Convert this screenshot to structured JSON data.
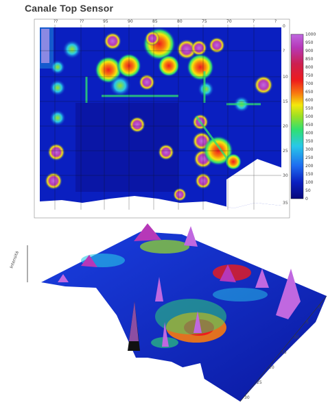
{
  "title": "Canale Top Sensor",
  "chart_data": [
    {
      "type": "heatmap",
      "title": "Canale Top Sensor",
      "colorbar": {
        "min": 0,
        "max": 1000,
        "ticks": [
          1000,
          950,
          900,
          850,
          800,
          750,
          700,
          650,
          600,
          550,
          500,
          450,
          400,
          350,
          300,
          250,
          200,
          150,
          100,
          50,
          0
        ],
        "colors": [
          "#08087a",
          "#0a1fc0",
          "#1e6cf0",
          "#28c8e8",
          "#30e070",
          "#9ae024",
          "#f4e80c",
          "#f87a10",
          "#ee1c1c",
          "#cc2050",
          "#b638b8",
          "#c068e0"
        ]
      },
      "x_ticks": [
        "??",
        "??",
        "95",
        "90",
        "85",
        "80",
        "75",
        "70",
        "?",
        "?"
      ],
      "y_ticks": [
        "0",
        "?",
        "10",
        "15",
        "20",
        "25",
        "30",
        "35"
      ],
      "background": "#0a1fc0",
      "hotspots": [
        {
          "x": 60,
          "y": 30,
          "value": 950
        },
        {
          "x": 130,
          "y": 40,
          "value": 800
        },
        {
          "x": 230,
          "y": 30,
          "value": 700
        },
        {
          "x": 250,
          "y": 80,
          "value": 750
        },
        {
          "x": 240,
          "y": 110,
          "value": 700
        },
        {
          "x": 300,
          "y": 90,
          "value": 780
        },
        {
          "x": 280,
          "y": 160,
          "value": 650
        },
        {
          "x": 260,
          "y": 200,
          "value": 750
        },
        {
          "x": 320,
          "y": 270,
          "value": 720
        }
      ]
    },
    {
      "type": "area",
      "subtype": "3d-surface",
      "zlabel": "Intensità",
      "x_ticks": [
        "0",
        "5",
        "10",
        "15",
        "20",
        "25",
        "30"
      ],
      "y_ticks": [
        "0",
        "5",
        "10",
        "15",
        "20"
      ]
    }
  ]
}
